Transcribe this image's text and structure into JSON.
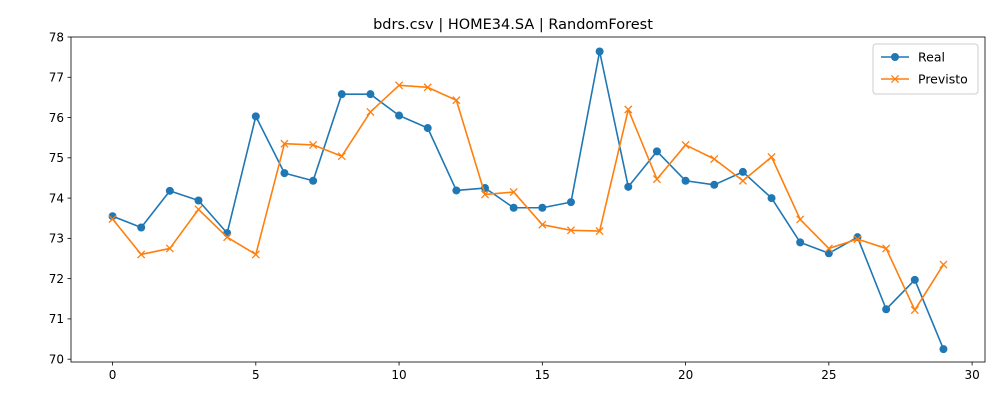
{
  "chart_data": {
    "type": "line",
    "title": "bdrs.csv | HOME34.SA | RandomForest",
    "xlabel": "",
    "ylabel": "",
    "x": [
      0,
      1,
      2,
      3,
      4,
      5,
      6,
      7,
      8,
      9,
      10,
      11,
      12,
      13,
      14,
      15,
      16,
      17,
      18,
      19,
      20,
      21,
      22,
      23,
      24,
      25,
      26,
      27,
      28,
      29
    ],
    "xlim": [
      -1.45,
      30.45
    ],
    "ylim": [
      69.93,
      78.0
    ],
    "xticks": [
      0,
      5,
      10,
      15,
      20,
      25,
      30
    ],
    "yticks": [
      70,
      71,
      72,
      73,
      74,
      75,
      76,
      77,
      78
    ],
    "grid": false,
    "legend_position": "top-right",
    "series": [
      {
        "name": "Real",
        "color": "#1f77b4",
        "marker": "circle",
        "values": [
          73.55,
          73.27,
          74.18,
          73.94,
          73.13,
          76.03,
          74.62,
          74.43,
          76.58,
          76.58,
          76.05,
          75.74,
          74.19,
          74.25,
          73.76,
          73.76,
          73.9,
          77.64,
          74.28,
          75.16,
          74.43,
          74.33,
          74.65,
          74.0,
          72.9,
          72.63,
          73.03,
          71.24,
          71.97,
          70.25
        ]
      },
      {
        "name": "Previsto",
        "color": "#ff7f0e",
        "marker": "x",
        "values": [
          73.48,
          72.6,
          72.75,
          73.72,
          73.03,
          72.6,
          75.35,
          75.32,
          75.04,
          76.14,
          76.8,
          76.75,
          76.43,
          74.09,
          74.15,
          73.34,
          73.2,
          73.18,
          76.2,
          74.47,
          75.32,
          74.97,
          74.43,
          75.02,
          73.47,
          72.75,
          72.98,
          72.75,
          71.22,
          72.35
        ]
      }
    ]
  }
}
